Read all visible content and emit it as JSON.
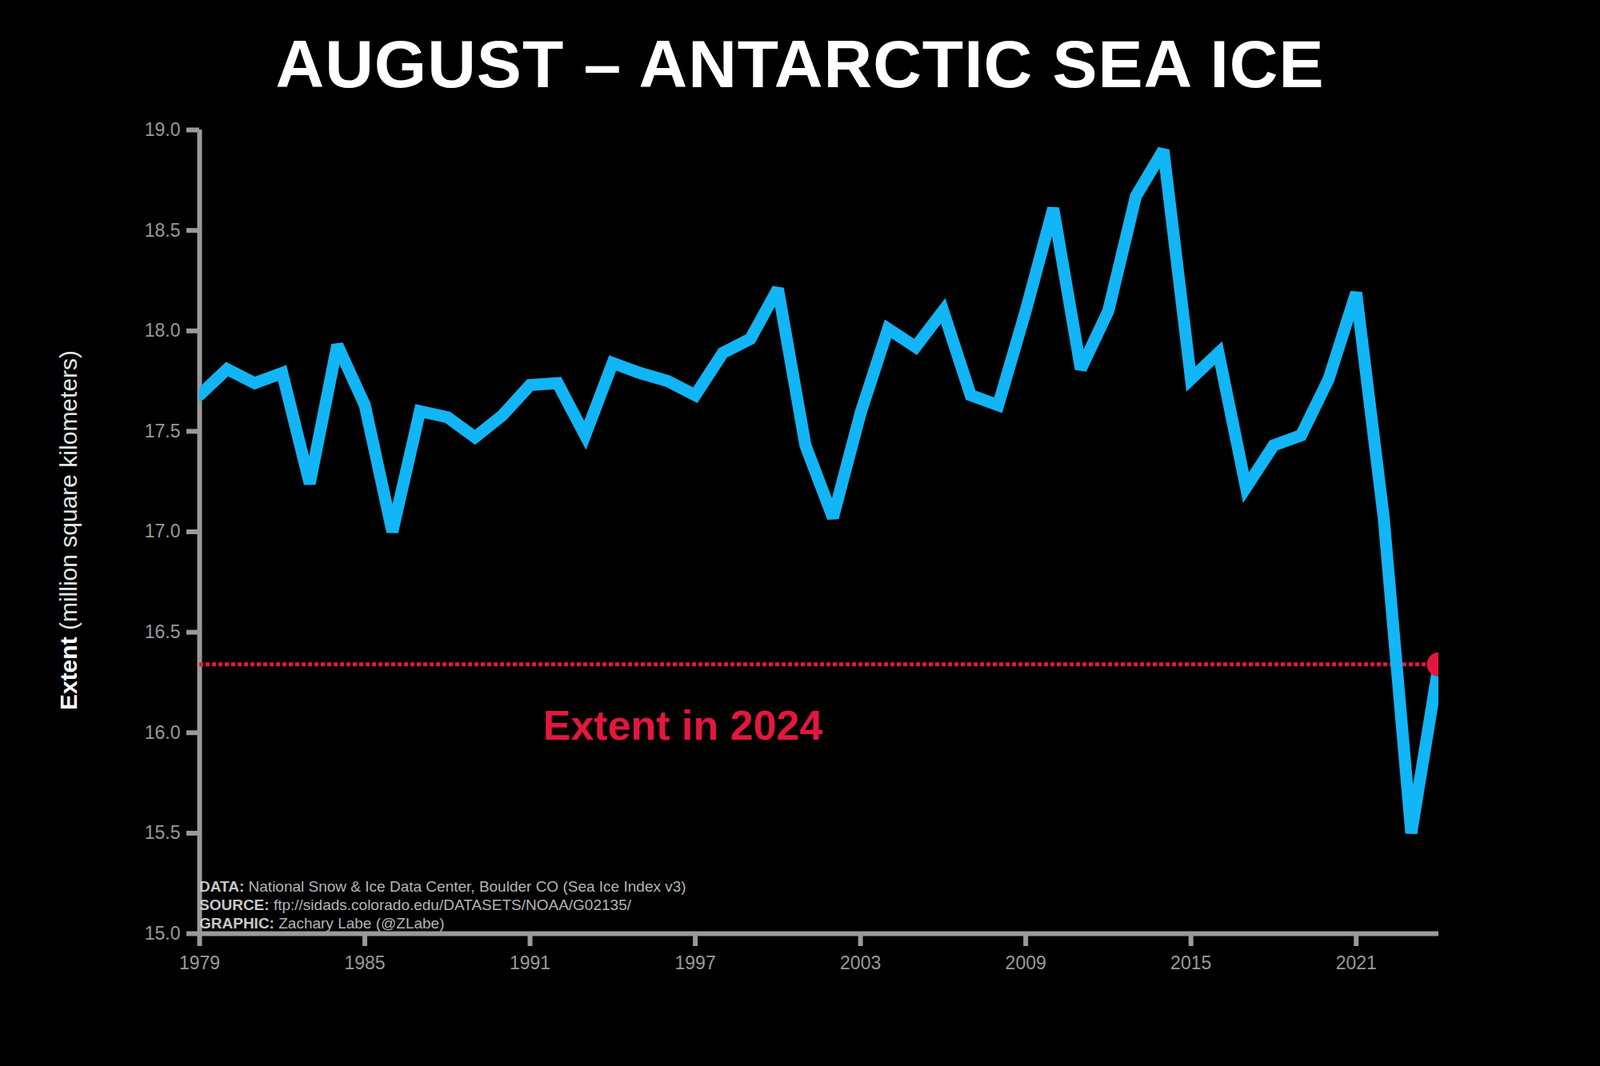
{
  "chart_data": {
    "type": "line",
    "title": "AUGUST – ANTARCTIC SEA ICE",
    "ylabel": {
      "bold": "Extent",
      "text": "(million square kilometers)"
    },
    "x": [
      1979,
      1980,
      1981,
      1982,
      1983,
      1984,
      1985,
      1986,
      1987,
      1988,
      1989,
      1990,
      1991,
      1992,
      1993,
      1994,
      1995,
      1996,
      1997,
      1998,
      1999,
      2000,
      2001,
      2002,
      2003,
      2004,
      2005,
      2006,
      2007,
      2008,
      2009,
      2010,
      2011,
      2012,
      2013,
      2014,
      2015,
      2016,
      2017,
      2018,
      2019,
      2020,
      2021,
      2022,
      2023,
      2024
    ],
    "values": [
      17.68,
      17.81,
      17.74,
      17.79,
      17.24,
      17.93,
      17.63,
      17.0,
      17.6,
      17.57,
      17.47,
      17.58,
      17.73,
      17.74,
      17.48,
      17.84,
      17.79,
      17.75,
      17.68,
      17.89,
      17.96,
      18.21,
      17.43,
      17.07,
      17.59,
      18.01,
      17.92,
      18.1,
      17.68,
      17.63,
      18.1,
      18.61,
      17.81,
      18.1,
      18.67,
      18.9,
      17.76,
      17.89,
      17.22,
      17.43,
      17.48,
      17.76,
      18.19,
      17.07,
      15.5,
      16.34
    ],
    "color": "#12b5f5",
    "annotation": {
      "text": "Extent in 2024",
      "color": "#e3173e"
    },
    "xlim": [
      1979,
      2024
    ],
    "xticks": [
      1979,
      1985,
      1991,
      1997,
      2003,
      2009,
      2015,
      2021
    ],
    "ylim": [
      15,
      19
    ],
    "yticks": [
      {
        "value": 15,
        "label": "15.0"
      },
      15.5,
      {
        "value": 16,
        "label": "16.0"
      },
      16.5,
      {
        "value": 17,
        "label": "17.0"
      },
      17.5,
      {
        "value": 18,
        "label": "18.0"
      },
      18.5,
      {
        "value": 19,
        "label": "19.0"
      }
    ],
    "grid": false,
    "credits": [
      {
        "label": "DATA:",
        "text": "National Snow & Ice Data Center, Boulder CO (Sea Ice Index v3)"
      },
      {
        "label": "SOURCE:",
        "text": "ftp://sidads.colorado.edu/DATASETS/NOAA/G02135/"
      },
      {
        "label": "GRAPHIC:",
        "text": "Zachary Labe (@ZLabe)"
      }
    ]
  }
}
